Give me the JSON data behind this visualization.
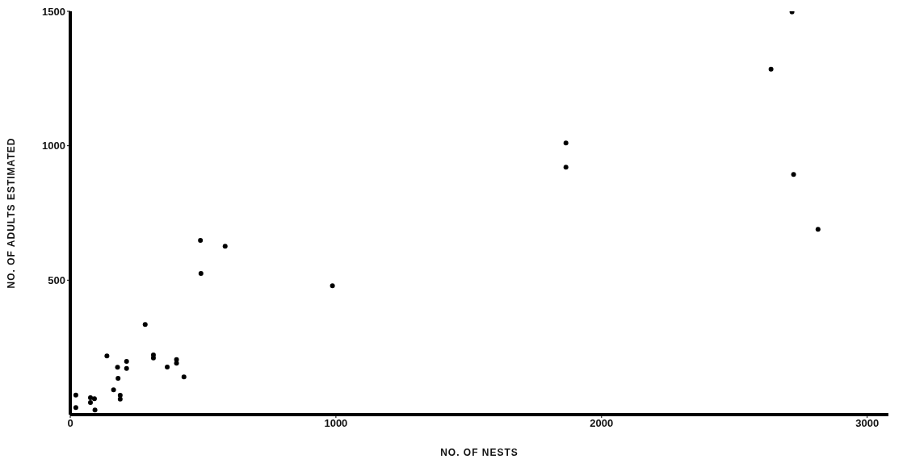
{
  "chart_data": {
    "type": "scatter",
    "xlabel": "NO. OF NESTS",
    "ylabel": "NO. OF ADULTS ESTIMATED",
    "x": [
      21,
      21,
      76,
      76,
      91,
      93,
      138,
      178,
      180,
      163,
      188,
      188,
      212,
      212,
      282,
      313,
      313,
      365,
      400,
      400,
      428,
      490,
      492,
      583,
      987,
      1866,
      1866,
      2638,
      2717,
      2723,
      2815
    ],
    "values": [
      73,
      26,
      63,
      45,
      59,
      17,
      218,
      176,
      135,
      92,
      72,
      58,
      198,
      172,
      335,
      222,
      211,
      177,
      205,
      191,
      140,
      648,
      525,
      626,
      479,
      1010,
      920,
      1285,
      1498,
      893,
      689
    ],
    "color": "#000000",
    "marker": "circle",
    "xlim": [
      0,
      3080
    ],
    "xticks": [
      0,
      1000,
      2000,
      3000
    ],
    "ylim": [
      0,
      1500
    ],
    "yticks": [
      500,
      1000,
      1500
    ],
    "grid": false,
    "legend": false
  }
}
